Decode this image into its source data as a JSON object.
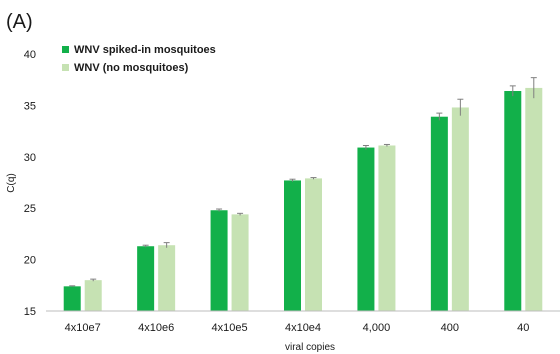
{
  "panel_label": "(A)",
  "colors": {
    "series_1": "#12b04a",
    "series_2": "#c6e2b3",
    "axis": "#bdbdbd",
    "error_bar": "#7f7f7f",
    "text": "#1a1a1a"
  },
  "chart_data": {
    "type": "bar",
    "xlabel": "viral copies",
    "ylabel": "C(q)",
    "ylim": [
      15,
      40
    ],
    "yticks": [
      15,
      20,
      25,
      30,
      35,
      40
    ],
    "grid": false,
    "legend_position": "top-left",
    "categories": [
      "4x10e7",
      "4x10e6",
      "4x10e5",
      "4x10e4",
      "4,000",
      "400",
      "40"
    ],
    "series": [
      {
        "name": "WNV spiked-in mosquitoes",
        "values": [
          17.4,
          21.3,
          24.8,
          27.7,
          30.9,
          33.9,
          36.4
        ],
        "errors": [
          0.05,
          0.1,
          0.12,
          0.12,
          0.2,
          0.35,
          0.5
        ]
      },
      {
        "name": "WNV (no mosquitoes)",
        "values": [
          18.0,
          21.4,
          24.4,
          27.9,
          31.1,
          34.8,
          36.7
        ],
        "errors": [
          0.1,
          0.25,
          0.1,
          0.08,
          0.1,
          0.8,
          1.0
        ]
      }
    ]
  }
}
